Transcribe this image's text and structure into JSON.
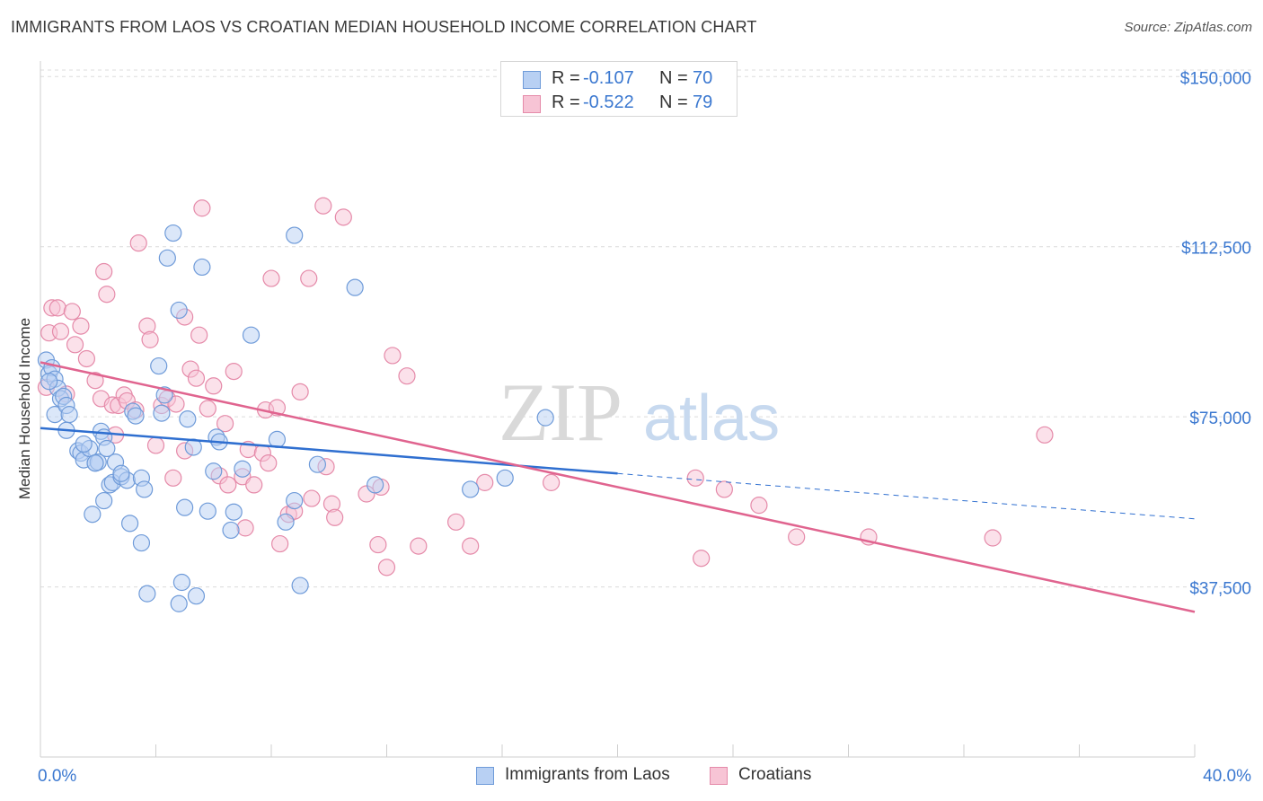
{
  "title": "IMMIGRANTS FROM LAOS VS CROATIAN MEDIAN HOUSEHOLD INCOME CORRELATION CHART",
  "source": "Source: ZipAtlas.com",
  "watermark": {
    "zip": "ZIP",
    "atlas": "atlas"
  },
  "legend": {
    "rows": [
      {
        "r_label": "R =",
        "r_value": "-0.107",
        "n_label": "N =",
        "n_value": "70"
      },
      {
        "r_label": "R =",
        "r_value": "-0.522",
        "n_label": "N =",
        "n_value": "79"
      }
    ]
  },
  "bottom_legend": {
    "series1": "Immigrants from Laos",
    "series2": "Croatians"
  },
  "colors": {
    "blue_fill": "#b8d0f3",
    "blue_stroke": "#6f9bd9",
    "blue_line": "#2f6fd0",
    "pink_fill": "#f7c4d5",
    "pink_stroke": "#e58aa9",
    "pink_line": "#e0648f",
    "axis_text": "#3b78d0",
    "value_text": "#3b78d0"
  },
  "chart_data": {
    "type": "scatter",
    "title": "IMMIGRANTS FROM LAOS VS CROATIAN MEDIAN HOUSEHOLD INCOME CORRELATION CHART",
    "ylabel": "Median Household Income",
    "xlabel": "",
    "xlim": [
      0,
      40
    ],
    "ylim": [
      0,
      155000
    ],
    "x_tick_labels": [
      "0.0%",
      "40.0%"
    ],
    "y_ticks": [
      {
        "value": 150000,
        "label": "$150,000"
      },
      {
        "value": 112500,
        "label": "$112,500"
      },
      {
        "value": 75000,
        "label": "$75,000"
      },
      {
        "value": 37500,
        "label": "$37,500"
      }
    ],
    "grid": true,
    "legend_position": "top-center",
    "series": [
      {
        "name": "Immigrants from Laos",
        "color": "#6f9bd9",
        "trend": {
          "x0": 0.0,
          "y0": 72500,
          "x1": 20.0,
          "y1": 62500,
          "dash_to_x": 40.0,
          "dash_to_y": 52500
        },
        "points": [
          [
            0.2,
            87500
          ],
          [
            0.3,
            84500
          ],
          [
            0.4,
            85800
          ],
          [
            0.5,
            83300
          ],
          [
            0.6,
            81300
          ],
          [
            0.5,
            75500
          ],
          [
            0.7,
            79000
          ],
          [
            0.8,
            79500
          ],
          [
            0.9,
            77500
          ],
          [
            1.0,
            75500
          ],
          [
            1.3,
            67500
          ],
          [
            1.4,
            67000
          ],
          [
            1.5,
            65500
          ],
          [
            1.7,
            68000
          ],
          [
            1.9,
            64800
          ],
          [
            2.0,
            65000
          ],
          [
            2.1,
            71800
          ],
          [
            2.2,
            70500
          ],
          [
            2.3,
            68000
          ],
          [
            2.6,
            65000
          ],
          [
            1.8,
            53500
          ],
          [
            2.2,
            56500
          ],
          [
            2.4,
            60000
          ],
          [
            2.5,
            60500
          ],
          [
            2.8,
            61800
          ],
          [
            3.0,
            61000
          ],
          [
            3.2,
            76200
          ],
          [
            3.3,
            75200
          ],
          [
            3.5,
            61500
          ],
          [
            3.6,
            59000
          ],
          [
            3.1,
            51500
          ],
          [
            3.5,
            47200
          ],
          [
            3.7,
            36000
          ],
          [
            4.1,
            86200
          ],
          [
            4.2,
            75800
          ],
          [
            4.3,
            79800
          ],
          [
            4.4,
            110000
          ],
          [
            4.6,
            115500
          ],
          [
            4.8,
            98500
          ],
          [
            5.1,
            74500
          ],
          [
            5.3,
            68300
          ],
          [
            4.8,
            33800
          ],
          [
            4.9,
            38500
          ],
          [
            5.4,
            35500
          ],
          [
            5.6,
            108000
          ],
          [
            5.8,
            54200
          ],
          [
            6.0,
            63000
          ],
          [
            6.1,
            70500
          ],
          [
            6.2,
            69500
          ],
          [
            6.7,
            54000
          ],
          [
            6.6,
            50000
          ],
          [
            7.0,
            63500
          ],
          [
            7.3,
            93000
          ],
          [
            8.2,
            70000
          ],
          [
            8.8,
            115000
          ],
          [
            8.8,
            56500
          ],
          [
            8.5,
            51800
          ],
          [
            9.0,
            37800
          ],
          [
            9.6,
            64500
          ],
          [
            10.9,
            103500
          ],
          [
            11.6,
            60000
          ],
          [
            14.9,
            59000
          ],
          [
            16.1,
            61500
          ],
          [
            17.5,
            74800
          ],
          [
            0.3,
            82800
          ],
          [
            1.9,
            64800
          ],
          [
            0.9,
            72000
          ],
          [
            2.8,
            62500
          ],
          [
            5.0,
            55000
          ],
          [
            1.5,
            69000
          ]
        ]
      },
      {
        "name": "Croatians",
        "color": "#e58aa9",
        "trend": {
          "x0": 0.0,
          "y0": 87000,
          "x1": 40.0,
          "y1": 32000
        },
        "points": [
          [
            0.2,
            81500
          ],
          [
            0.3,
            93500
          ],
          [
            0.4,
            99000
          ],
          [
            0.6,
            99000
          ],
          [
            0.7,
            93800
          ],
          [
            0.9,
            80000
          ],
          [
            1.1,
            98200
          ],
          [
            1.2,
            90900
          ],
          [
            1.4,
            95000
          ],
          [
            1.6,
            87800
          ],
          [
            1.9,
            83000
          ],
          [
            2.1,
            79000
          ],
          [
            2.2,
            107000
          ],
          [
            2.3,
            102000
          ],
          [
            2.5,
            77600
          ],
          [
            2.7,
            77500
          ],
          [
            2.9,
            79800
          ],
          [
            3.0,
            78500
          ],
          [
            3.3,
            76500
          ],
          [
            3.4,
            113300
          ],
          [
            3.7,
            95000
          ],
          [
            3.8,
            92000
          ],
          [
            4.0,
            68700
          ],
          [
            4.2,
            77500
          ],
          [
            4.4,
            79000
          ],
          [
            4.6,
            61500
          ],
          [
            4.7,
            77800
          ],
          [
            5.0,
            97000
          ],
          [
            5.2,
            85500
          ],
          [
            5.4,
            83500
          ],
          [
            5.5,
            93000
          ],
          [
            5.6,
            121000
          ],
          [
            5.8,
            76800
          ],
          [
            6.0,
            81800
          ],
          [
            6.2,
            62000
          ],
          [
            6.4,
            73500
          ],
          [
            6.5,
            60000
          ],
          [
            6.7,
            85000
          ],
          [
            7.0,
            61800
          ],
          [
            7.1,
            50500
          ],
          [
            7.2,
            67800
          ],
          [
            7.4,
            60000
          ],
          [
            7.7,
            67000
          ],
          [
            7.8,
            76500
          ],
          [
            7.9,
            64800
          ],
          [
            8.0,
            105500
          ],
          [
            8.2,
            77000
          ],
          [
            8.3,
            47000
          ],
          [
            8.6,
            53500
          ],
          [
            8.8,
            54200
          ],
          [
            9.0,
            80500
          ],
          [
            9.3,
            105500
          ],
          [
            9.8,
            121500
          ],
          [
            9.9,
            64000
          ],
          [
            10.1,
            55800
          ],
          [
            10.2,
            52800
          ],
          [
            10.5,
            119000
          ],
          [
            11.3,
            58000
          ],
          [
            11.7,
            46800
          ],
          [
            11.8,
            59500
          ],
          [
            12.0,
            41800
          ],
          [
            12.2,
            88500
          ],
          [
            12.7,
            84000
          ],
          [
            13.1,
            46500
          ],
          [
            14.4,
            51800
          ],
          [
            14.9,
            46500
          ],
          [
            15.4,
            60500
          ],
          [
            17.7,
            60500
          ],
          [
            22.7,
            61500
          ],
          [
            22.9,
            43800
          ],
          [
            23.7,
            59000
          ],
          [
            24.9,
            55500
          ],
          [
            26.2,
            48500
          ],
          [
            28.7,
            48500
          ],
          [
            33.0,
            48300
          ],
          [
            34.8,
            71000
          ],
          [
            2.6,
            71000
          ],
          [
            5.0,
            67500
          ],
          [
            9.4,
            57000
          ]
        ]
      }
    ]
  }
}
